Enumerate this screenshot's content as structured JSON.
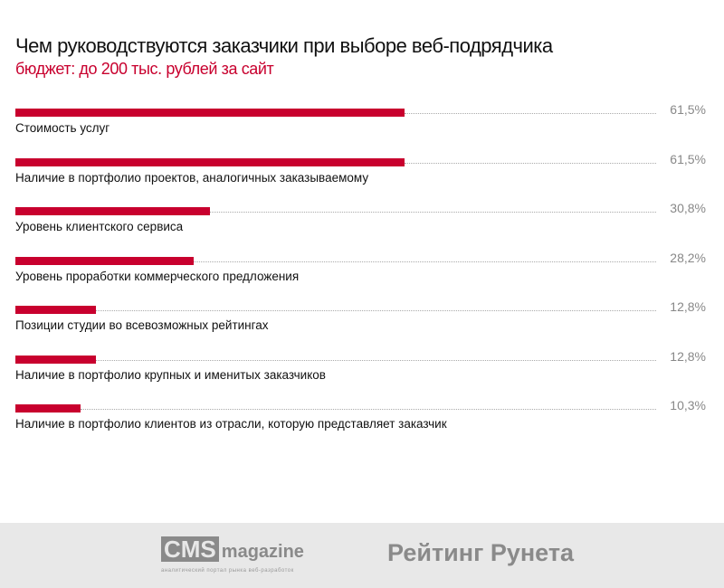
{
  "chart_data": {
    "type": "bar",
    "orientation": "horizontal",
    "title": "Чем руководствуются заказчики при выборе веб-подрядчика",
    "subtitle": "бюджет: до 200 тыс. рублей за сайт",
    "categories": [
      "Стоимость услуг",
      "Наличие в портфолио проектов, аналогичных заказываемому",
      "Уровень клиентского сервиса",
      "Уровень проработки коммерческого предложения",
      "Позиции студии во всевозможных рейтингах",
      "Наличие в портфолио крупных и именитых заказчиков",
      "Наличие в портфолио клиентов из отрасли, которую представляет заказчик"
    ],
    "values": [
      61.5,
      61.5,
      30.8,
      28.2,
      12.8,
      12.8,
      10.3
    ],
    "value_labels": [
      "61,5%",
      "61,5%",
      "30,8%",
      "28,2%",
      "12,8%",
      "12,8%",
      "10,3%"
    ],
    "xlim": [
      0,
      61.5
    ],
    "color": "#c8002e"
  },
  "footer": {
    "cms_logo": "CMS",
    "cms_logo_word": "magazine",
    "cms_tagline": "аналитический портал рынка веб-разработок",
    "rating": "Рейтинг Рунета"
  }
}
